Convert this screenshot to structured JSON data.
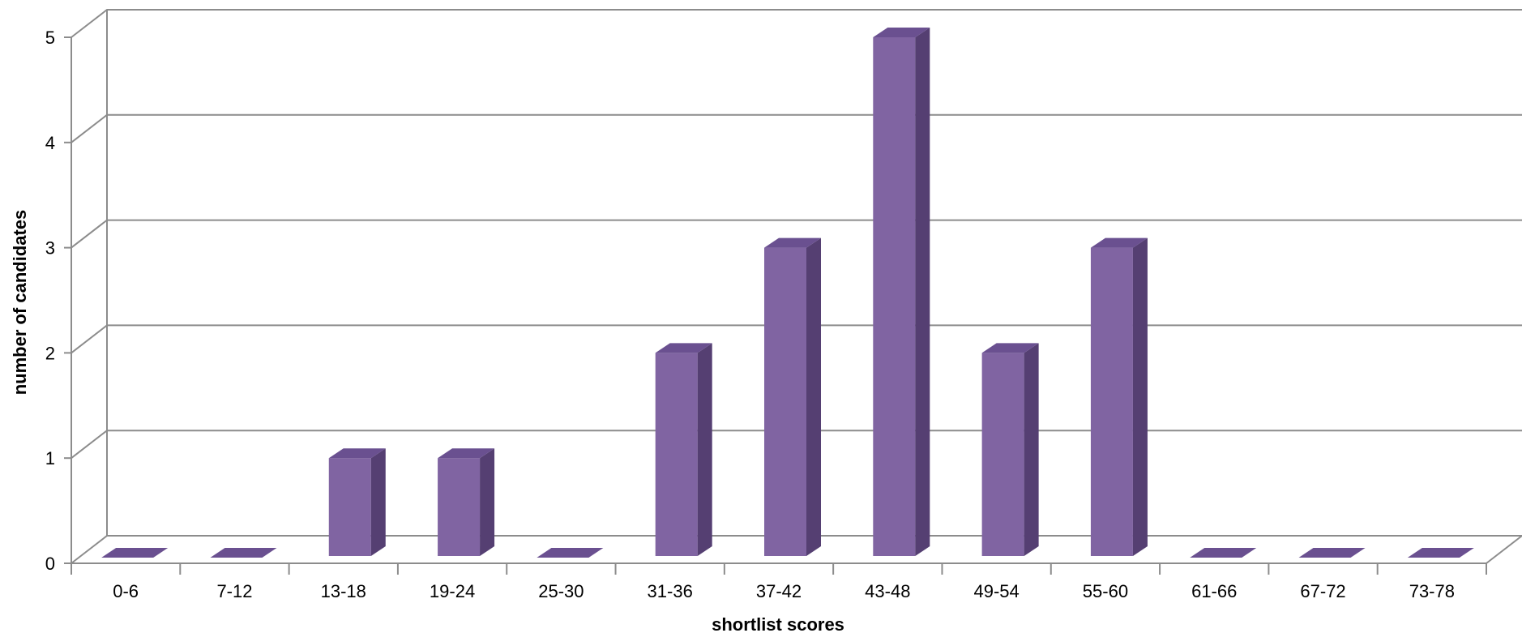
{
  "chart_data": {
    "type": "bar",
    "title": "",
    "xlabel": "shortlist scores",
    "ylabel": "number of candidates",
    "categories": [
      "0-6",
      "7-12",
      "13-18",
      "19-24",
      "25-30",
      "31-36",
      "37-42",
      "43-48",
      "49-54",
      "55-60",
      "61-66",
      "67-72",
      "73-78"
    ],
    "values": [
      0,
      0,
      1,
      1,
      0,
      2,
      3,
      5,
      2,
      3,
      0,
      0,
      0
    ],
    "ylim": [
      0,
      5
    ],
    "yticks": [
      "0",
      "1",
      "2",
      "3",
      "4",
      "5"
    ],
    "grid": true,
    "legend": "none",
    "colors": {
      "bar_front": "#8064a2",
      "bar_side": "#553f72",
      "bar_top": "#6a5090",
      "grid": "#8c8c8c",
      "axis": "#8c8c8c"
    }
  }
}
